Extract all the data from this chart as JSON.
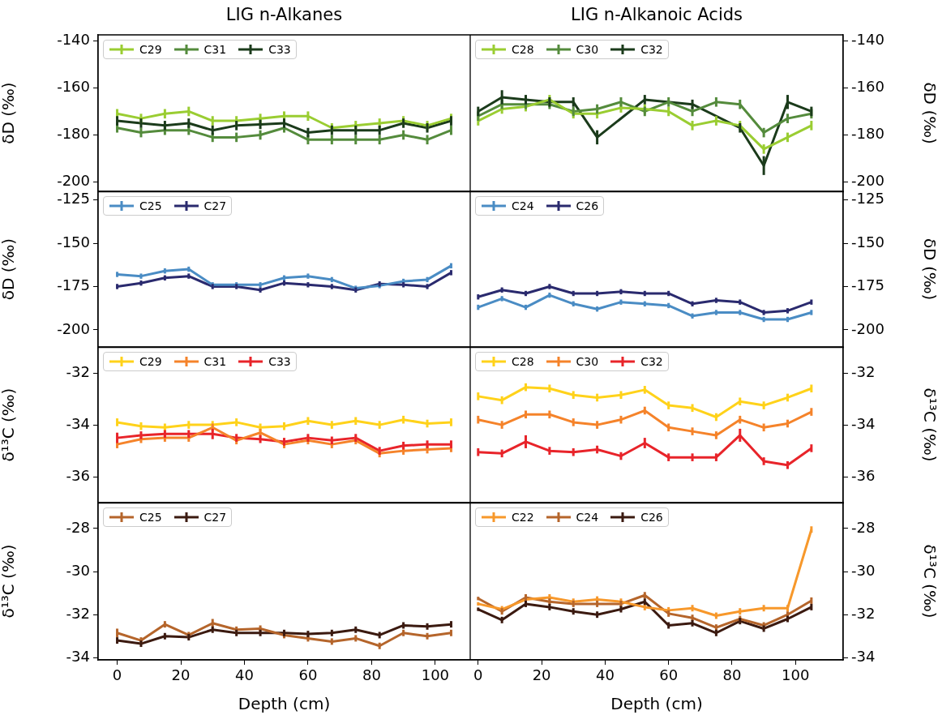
{
  "chart_data": [
    {
      "type": "line",
      "title": "LIG n-Alkanes",
      "ylabel": "δD (‰)",
      "x": [
        0,
        7.5,
        15,
        22.5,
        30,
        37.5,
        45,
        52.5,
        60,
        67.5,
        75,
        82.5,
        90,
        97.5,
        105
      ],
      "xlim": [
        -6,
        111
      ],
      "xticks": [
        0,
        20,
        40,
        60,
        80,
        100
      ],
      "ylim": [
        -204,
        -137.5
      ],
      "yticks": [
        -200,
        -180,
        -160,
        -140
      ],
      "legend": "top left",
      "tick_labels": "y",
      "series": [
        {
          "name": "C29",
          "color": "#9acd32",
          "values": [
            -171,
            -173,
            -171,
            -170,
            -174,
            -174,
            -173,
            -172,
            -172,
            -177,
            -176,
            -175,
            -174,
            -176,
            -173
          ],
          "errors": [
            2,
            2,
            2,
            2,
            2,
            2,
            2,
            2,
            2,
            2,
            2,
            2,
            2,
            2,
            2
          ]
        },
        {
          "name": "C31",
          "color": "#548b3c",
          "values": [
            -177,
            -179,
            -178,
            -178,
            -181,
            -181,
            -180,
            -177,
            -182,
            -182,
            -182,
            -182,
            -180,
            -182,
            -178
          ],
          "errors": [
            2,
            2,
            2,
            2,
            2,
            2,
            2,
            2,
            2,
            2,
            2,
            2,
            2,
            2,
            2
          ]
        },
        {
          "name": "C33",
          "color": "#1b3b1b",
          "values": [
            -174,
            -175,
            -176,
            -175,
            -178,
            -176,
            -175.5,
            -175,
            -179,
            -178,
            -178,
            -178,
            -175,
            -177,
            -174
          ],
          "errors": [
            2,
            2,
            2,
            2,
            2,
            2,
            2,
            2,
            2,
            2,
            2,
            2,
            2,
            2,
            2
          ]
        }
      ]
    },
    {
      "type": "line",
      "title": "LIG n-Alkanoic Acids",
      "ylabel": "δD (‰)",
      "x": [
        0,
        7.5,
        15,
        22.5,
        30,
        37.5,
        45,
        52.5,
        60,
        67.5,
        75,
        82.5,
        90,
        97.5,
        105
      ],
      "xlim": [
        -2.5,
        115
      ],
      "xticks": [
        0,
        20,
        40,
        60,
        80,
        100
      ],
      "ylim": [
        -204,
        -137.5
      ],
      "yticks": [
        -200,
        -180,
        -160,
        -140
      ],
      "legend": "top left",
      "tick_labels": "y",
      "series": [
        {
          "name": "C28",
          "color": "#9acd32",
          "values": [
            -174,
            -169,
            -168,
            -165,
            -171,
            -171,
            -168.5,
            -169,
            -170,
            -176,
            -174,
            -176,
            -186,
            -181,
            -176
          ],
          "errors": [
            2,
            2,
            2,
            2,
            2,
            2,
            2,
            2,
            2,
            2,
            2,
            2,
            2,
            2,
            2
          ]
        },
        {
          "name": "C30",
          "color": "#548b3c",
          "values": [
            -172,
            -167,
            -167,
            -167,
            -170,
            -169,
            -166,
            -170,
            -166,
            -170,
            -166,
            -167,
            -179,
            -173,
            -171
          ],
          "errors": [
            2,
            2,
            2,
            2,
            2,
            2,
            2,
            2,
            2,
            2,
            2,
            2,
            2,
            2,
            2
          ]
        },
        {
          "name": "C32",
          "color": "#1b3b1b",
          "x": [
            0,
            7.5,
            15,
            22.5,
            30,
            37.5,
            52.5,
            67.5,
            82.5,
            90,
            97.5,
            105
          ],
          "values": [
            -170,
            -164,
            -165,
            -166,
            -166,
            -181,
            -165,
            -167,
            -177,
            -193,
            -166,
            -170
          ],
          "errors": [
            2,
            3,
            2,
            2,
            2,
            3,
            2,
            2,
            2,
            4,
            3,
            2
          ]
        }
      ]
    },
    {
      "type": "line",
      "ylabel": "δD (‰)",
      "x": [
        0,
        7.5,
        15,
        22.5,
        30,
        37.5,
        45,
        52.5,
        60,
        67.5,
        75,
        82.5,
        90,
        97.5,
        105
      ],
      "xlim": [
        -6,
        111
      ],
      "xticks": [
        0,
        20,
        40,
        60,
        80,
        100
      ],
      "ylim": [
        -210,
        -120
      ],
      "yticks": [
        -200,
        -175,
        -150,
        -125
      ],
      "legend": "top left",
      "tick_labels": "y",
      "series": [
        {
          "name": "C25",
          "color": "#4a8cc4",
          "values": [
            -168,
            -169,
            -166,
            -165,
            -174,
            -174,
            -174,
            -170,
            -169,
            -171,
            -176,
            -174.5,
            -172,
            -171,
            -163
          ],
          "errors": [
            1.5,
            1.5,
            1.5,
            1.5,
            1.5,
            1.5,
            1.5,
            1.5,
            1.5,
            1.5,
            1.5,
            1.5,
            1.5,
            1.5,
            1.5
          ]
        },
        {
          "name": "C27",
          "color": "#2a2a6e",
          "values": [
            -175,
            -173,
            -170,
            -169,
            -175,
            -175,
            -177,
            -173,
            -174,
            -175,
            -177,
            -173.5,
            -174,
            -175,
            -167
          ],
          "errors": [
            1.5,
            1.5,
            1.5,
            1.5,
            1.5,
            1.5,
            1.5,
            1.5,
            1.5,
            1.5,
            1.5,
            1.5,
            1.5,
            1.5,
            1.5
          ]
        }
      ]
    },
    {
      "type": "line",
      "ylabel": "δD (‰)",
      "x": [
        0,
        7.5,
        15,
        22.5,
        30,
        37.5,
        45,
        52.5,
        60,
        67.5,
        75,
        82.5,
        90,
        97.5,
        105
      ],
      "xlim": [
        -2.5,
        115
      ],
      "xticks": [
        0,
        20,
        40,
        60,
        80,
        100
      ],
      "ylim": [
        -210,
        -120
      ],
      "yticks": [
        -200,
        -175,
        -150,
        -125
      ],
      "legend": "top left",
      "tick_labels": "y",
      "series": [
        {
          "name": "C24",
          "color": "#4a8cc4",
          "values": [
            -187,
            -182,
            -187,
            -180,
            -185,
            -188,
            -184,
            -185,
            -186,
            -192,
            -190,
            -190,
            -194,
            -194,
            -190
          ],
          "errors": [
            1.5,
            1.5,
            1.5,
            1.5,
            1.5,
            1.5,
            1.5,
            1.5,
            1.5,
            1.5,
            1.5,
            1.5,
            1.5,
            1.5,
            1.5
          ]
        },
        {
          "name": "C26",
          "color": "#2a2a6e",
          "values": [
            -181,
            -177,
            -179,
            -175,
            -179,
            -179,
            -178,
            -179,
            -179,
            -185,
            -183,
            -184,
            -190,
            -189,
            -184
          ],
          "errors": [
            1.5,
            1.5,
            1.5,
            1.5,
            1.5,
            1.5,
            1.5,
            1.5,
            1.5,
            1.5,
            1.5,
            1.5,
            1.5,
            1.5,
            1.5
          ]
        }
      ]
    },
    {
      "type": "line",
      "ylabel": "δ¹³C (‰)",
      "x": [
        0,
        7.5,
        15,
        22.5,
        30,
        37.5,
        45,
        52.5,
        60,
        67.5,
        75,
        82.5,
        90,
        97.5,
        105
      ],
      "xlim": [
        -6,
        111
      ],
      "xticks": [
        0,
        20,
        40,
        60,
        80,
        100
      ],
      "ylim": [
        -37,
        -31
      ],
      "yticks": [
        -36,
        -34,
        -32
      ],
      "legend": "top left",
      "tick_labels": "y",
      "series": [
        {
          "name": "C29",
          "color": "#ffd21a",
          "values": [
            -33.9,
            -34.05,
            -34.1,
            -34.0,
            -34.0,
            -33.9,
            -34.1,
            -34.05,
            -33.85,
            -34.0,
            -33.85,
            -34.0,
            -33.8,
            -33.95,
            -33.9
          ],
          "errors": [
            0.15,
            0.15,
            0.15,
            0.15,
            0.15,
            0.15,
            0.15,
            0.15,
            0.15,
            0.15,
            0.15,
            0.15,
            0.15,
            0.15,
            0.15
          ]
        },
        {
          "name": "C31",
          "color": "#f5832a",
          "values": [
            -34.75,
            -34.55,
            -34.5,
            -34.5,
            -34.1,
            -34.6,
            -34.3,
            -34.75,
            -34.6,
            -34.75,
            -34.6,
            -35.1,
            -35.0,
            -34.95,
            -34.9
          ],
          "errors": [
            0.15,
            0.15,
            0.15,
            0.15,
            0.15,
            0.15,
            0.15,
            0.15,
            0.15,
            0.15,
            0.15,
            0.15,
            0.15,
            0.15,
            0.15
          ]
        },
        {
          "name": "C33",
          "color": "#e8242a",
          "values": [
            -34.5,
            -34.4,
            -34.35,
            -34.35,
            -34.35,
            -34.5,
            -34.55,
            -34.65,
            -34.5,
            -34.6,
            -34.5,
            -35.0,
            -34.8,
            -34.75,
            -34.75
          ],
          "errors": [
            0.2,
            0.15,
            0.15,
            0.15,
            0.2,
            0.15,
            0.15,
            0.15,
            0.15,
            0.15,
            0.15,
            0.15,
            0.15,
            0.15,
            0.15
          ]
        }
      ]
    },
    {
      "type": "line",
      "ylabel": "δ¹³C (‰)",
      "x": [
        0,
        7.5,
        15,
        22.5,
        30,
        37.5,
        45,
        52.5,
        60,
        67.5,
        75,
        82.5,
        90,
        97.5,
        105
      ],
      "xlim": [
        -2.5,
        115
      ],
      "xticks": [
        0,
        20,
        40,
        60,
        80,
        100
      ],
      "ylim": [
        -37,
        -31
      ],
      "yticks": [
        -36,
        -34,
        -32
      ],
      "legend": "top left",
      "tick_labels": "y",
      "series": [
        {
          "name": "C28",
          "color": "#ffd21a",
          "values": [
            -32.9,
            -33.05,
            -32.55,
            -32.6,
            -32.85,
            -32.95,
            -32.85,
            -32.65,
            -33.25,
            -33.35,
            -33.7,
            -33.1,
            -33.25,
            -32.95,
            -32.6
          ],
          "errors": [
            0.15,
            0.15,
            0.15,
            0.15,
            0.15,
            0.15,
            0.15,
            0.15,
            0.15,
            0.15,
            0.15,
            0.15,
            0.15,
            0.15,
            0.15
          ]
        },
        {
          "name": "C30",
          "color": "#f5832a",
          "values": [
            -33.8,
            -34.0,
            -33.6,
            -33.6,
            -33.9,
            -34.0,
            -33.8,
            -33.45,
            -34.1,
            -34.25,
            -34.4,
            -33.8,
            -34.1,
            -33.95,
            -33.5
          ],
          "errors": [
            0.15,
            0.15,
            0.15,
            0.15,
            0.15,
            0.15,
            0.15,
            0.15,
            0.15,
            0.15,
            0.15,
            0.15,
            0.15,
            0.15,
            0.15
          ]
        },
        {
          "name": "C32",
          "color": "#e8242a",
          "values": [
            -35.05,
            -35.1,
            -34.65,
            -35.0,
            -35.05,
            -34.95,
            -35.2,
            -34.7,
            -35.25,
            -35.25,
            -35.25,
            -34.4,
            -35.4,
            -35.55,
            -34.9
          ],
          "errors": [
            0.15,
            0.15,
            0.25,
            0.15,
            0.15,
            0.15,
            0.15,
            0.2,
            0.15,
            0.15,
            0.15,
            0.25,
            0.15,
            0.15,
            0.15
          ]
        }
      ]
    },
    {
      "type": "line",
      "xlabel": "Depth (cm)",
      "ylabel": "δ¹³C (‰)",
      "x": [
        0,
        7.5,
        15,
        22.5,
        30,
        37.5,
        45,
        52.5,
        60,
        67.5,
        75,
        82.5,
        90,
        97.5,
        105
      ],
      "xlim": [
        -6,
        111
      ],
      "xticks": [
        0,
        20,
        40,
        60,
        80,
        100
      ],
      "ylim": [
        -34.1,
        -26.8
      ],
      "yticks": [
        -34,
        -32,
        -30,
        -28
      ],
      "legend": "top left",
      "series": [
        {
          "name": "C25",
          "color": "#b5652b",
          "values": [
            -32.85,
            -33.2,
            -32.45,
            -32.95,
            -32.4,
            -32.7,
            -32.65,
            -32.95,
            -33.1,
            -33.25,
            -33.1,
            -33.45,
            -32.85,
            -33.0,
            -32.85
          ],
          "errors": [
            0.2,
            0.15,
            0.15,
            0.15,
            0.2,
            0.15,
            0.15,
            0.15,
            0.15,
            0.15,
            0.15,
            0.15,
            0.15,
            0.15,
            0.15
          ]
        },
        {
          "name": "C27",
          "color": "#3b1a10",
          "values": [
            -33.2,
            -33.35,
            -33.0,
            -33.05,
            -32.7,
            -32.85,
            -32.85,
            -32.85,
            -32.9,
            -32.85,
            -32.7,
            -32.95,
            -32.5,
            -32.55,
            -32.45
          ],
          "errors": [
            0.15,
            0.15,
            0.15,
            0.15,
            0.15,
            0.15,
            0.15,
            0.15,
            0.15,
            0.15,
            0.15,
            0.15,
            0.15,
            0.15,
            0.15
          ]
        }
      ]
    },
    {
      "type": "line",
      "xlabel": "Depth (cm)",
      "ylabel": "δ¹³C (‰)",
      "x": [
        0,
        7.5,
        15,
        22.5,
        30,
        37.5,
        45,
        52.5,
        60,
        67.5,
        75,
        82.5,
        90,
        97.5,
        105
      ],
      "xlim": [
        -2.5,
        115
      ],
      "xticks": [
        0,
        20,
        40,
        60,
        80,
        100
      ],
      "ylim": [
        -34.1,
        -26.8
      ],
      "yticks": [
        -34,
        -32,
        -30,
        -28
      ],
      "legend": "top left",
      "series": [
        {
          "name": "C22",
          "color": "#f7982b",
          "values": [
            -31.5,
            -31.75,
            -31.3,
            -31.2,
            -31.4,
            -31.3,
            -31.4,
            -31.65,
            -31.8,
            -31.7,
            -32.05,
            -31.85,
            -31.7,
            -31.7,
            -28.05
          ],
          "errors": [
            0.08,
            0.15,
            0.15,
            0.15,
            0.15,
            0.15,
            0.15,
            0.15,
            0.15,
            0.15,
            0.15,
            0.15,
            0.15,
            0.15,
            0.15
          ]
        },
        {
          "name": "C24",
          "color": "#b5652b",
          "values": [
            -31.25,
            -31.85,
            -31.2,
            -31.4,
            -31.5,
            -31.5,
            -31.5,
            -31.1,
            -31.95,
            -32.15,
            -32.6,
            -32.2,
            -32.5,
            -32.0,
            -31.35
          ],
          "errors": [
            0.08,
            0.15,
            0.15,
            0.15,
            0.15,
            0.15,
            0.15,
            0.15,
            0.15,
            0.15,
            0.15,
            0.15,
            0.15,
            0.15,
            0.15
          ]
        },
        {
          "name": "C26",
          "color": "#3b1a10",
          "values": [
            -31.75,
            -32.25,
            -31.5,
            -31.65,
            -31.85,
            -32.0,
            -31.75,
            -31.4,
            -32.5,
            -32.4,
            -32.85,
            -32.3,
            -32.65,
            -32.2,
            -31.65
          ],
          "errors": [
            0.08,
            0.15,
            0.15,
            0.15,
            0.15,
            0.15,
            0.15,
            0.15,
            0.15,
            0.15,
            0.15,
            0.15,
            0.15,
            0.15,
            0.15
          ]
        }
      ]
    }
  ]
}
